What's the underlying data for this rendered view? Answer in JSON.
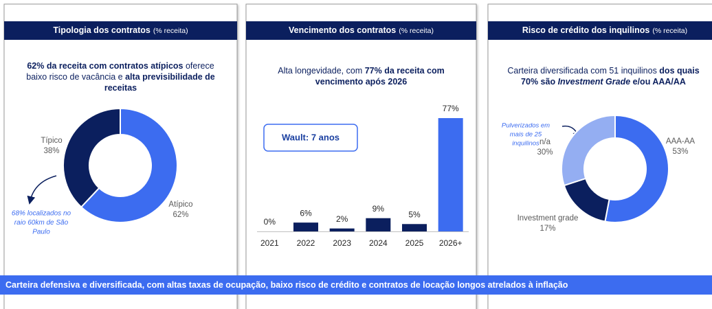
{
  "chart_data": [
    {
      "type": "donut",
      "title": "Tipologia dos contratos",
      "subtitle": "(% receita)",
      "description": [
        [
          {
            "text": "62% da receita com contratos atípicos",
            "style": "bold"
          },
          {
            "text": " oferece",
            "style": "normal"
          }
        ],
        [
          {
            "text": "baixo risco de vacância e ",
            "style": "normal"
          },
          {
            "text": "alta previsibilidade de",
            "style": "bold"
          }
        ],
        [
          {
            "text": "receitas",
            "style": "bold"
          }
        ]
      ],
      "categories": [
        "Atípico",
        "Típico"
      ],
      "values": [
        62,
        38
      ],
      "value_labels": [
        "62%",
        "38%"
      ],
      "colors": [
        "#3c6cf0",
        "#0b1f5e"
      ],
      "annotation": [
        "68% localizados no",
        "raio 60km de São",
        "Paulo"
      ]
    },
    {
      "type": "bar",
      "title": "Vencimento dos contratos",
      "subtitle": "(% receita)",
      "description": [
        [
          {
            "text": "Alta longevidade, com ",
            "style": "normal"
          },
          {
            "text": "77% da receita com",
            "style": "bold"
          }
        ],
        [
          {
            "text": "vencimento após 2026",
            "style": "bold"
          }
        ]
      ],
      "categories": [
        "2021",
        "2022",
        "2023",
        "2024",
        "2025",
        "2026+"
      ],
      "values": [
        0,
        6,
        2,
        9,
        5,
        77
      ],
      "value_labels": [
        "0%",
        "6%",
        "2%",
        "9%",
        "5%",
        "77%"
      ],
      "colors": [
        "#0b1f5e",
        "#0b1f5e",
        "#0b1f5e",
        "#0b1f5e",
        "#0b1f5e",
        "#3c6cf0"
      ],
      "annotation": "Wault: 7 anos"
    },
    {
      "type": "donut",
      "title": "Risco de crédito dos inquilinos",
      "subtitle": "(% receita)",
      "description": [
        [
          {
            "text": "Carteira diversificada com 51 inquilinos ",
            "style": "normal"
          },
          {
            "text": "dos quais",
            "style": "bold"
          }
        ],
        [
          {
            "text": "70% são ",
            "style": "bold"
          },
          {
            "text": "Investment Grade",
            "style": "bold-italic"
          },
          {
            "text": " e/ou AAA/AA",
            "style": "bold"
          }
        ]
      ],
      "categories": [
        "AAA-AA",
        "Investment grade",
        "n/a"
      ],
      "values": [
        53,
        17,
        30
      ],
      "value_labels": [
        "53%",
        "17%",
        "30%"
      ],
      "colors": [
        "#3c6cf0",
        "#0b1f5e",
        "#94aef2"
      ],
      "annotation": [
        "Pulverizados em",
        "mais de 25",
        "inquilinos"
      ]
    }
  ],
  "footer": "Carteira defensiva e diversificada, com altas taxas de ocupação, baixo risco de crédito e contratos de locação longos atrelados à inflação"
}
